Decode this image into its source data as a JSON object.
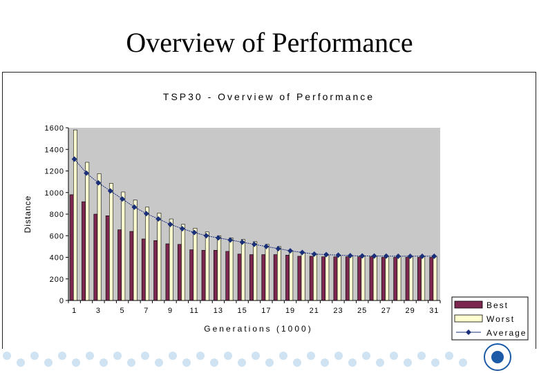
{
  "slide": {
    "title": "Overview of Performance"
  },
  "colors": {
    "best": "#7b2750",
    "worst": "#ffffd0",
    "average": "#1a2f7a",
    "plot_bg": "#c8c8c8"
  },
  "chart_data": {
    "type": "bar",
    "title": "TSP30 - Overview of Performance",
    "xlabel": "Generations (1000)",
    "ylabel": "Distance",
    "ylim": [
      0,
      1600
    ],
    "yticks": [
      0,
      200,
      400,
      600,
      800,
      1000,
      1200,
      1400,
      1600
    ],
    "grid": false,
    "legend_position": "bottom-right",
    "categories": [
      "1",
      "2",
      "3",
      "4",
      "5",
      "6",
      "7",
      "8",
      "9",
      "10",
      "11",
      "12",
      "13",
      "14",
      "15",
      "16",
      "17",
      "18",
      "19",
      "20",
      "21",
      "22",
      "23",
      "24",
      "25",
      "26",
      "27",
      "28",
      "29",
      "30",
      "31"
    ],
    "tick_labels": [
      "1",
      "3",
      "5",
      "7",
      "9",
      "11",
      "13",
      "15",
      "17",
      "19",
      "21",
      "23",
      "25",
      "27",
      "29",
      "31"
    ],
    "series": [
      {
        "name": "Best",
        "kind": "bar",
        "values": [
          980,
          915,
          800,
          785,
          655,
          640,
          570,
          555,
          525,
          520,
          470,
          465,
          465,
          455,
          430,
          425,
          425,
          425,
          420,
          410,
          410,
          405,
          405,
          405,
          405,
          405,
          400,
          400,
          400,
          400,
          400
        ]
      },
      {
        "name": "Worst",
        "kind": "bar",
        "values": [
          1580,
          1280,
          1175,
          1085,
          1005,
          930,
          865,
          810,
          755,
          705,
          670,
          635,
          600,
          580,
          565,
          545,
          520,
          500,
          460,
          440,
          430,
          420,
          415,
          415,
          412,
          410,
          410,
          410,
          410,
          410,
          410
        ]
      },
      {
        "name": "Average",
        "kind": "line",
        "values": [
          1310,
          1180,
          1090,
          1015,
          940,
          865,
          805,
          755,
          705,
          665,
          630,
          600,
          580,
          560,
          540,
          520,
          500,
          480,
          460,
          445,
          430,
          425,
          420,
          415,
          413,
          412,
          411,
          410,
          410,
          410,
          410
        ]
      }
    ]
  }
}
